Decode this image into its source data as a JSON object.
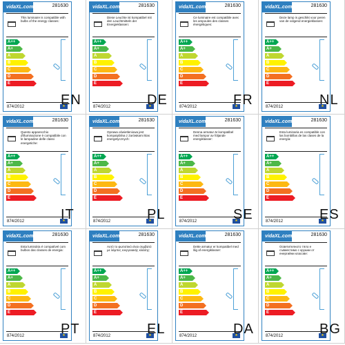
{
  "logo": "vidaXL.com",
  "regulation": "874/2012",
  "eu_flag_icon": "eu-flag-icon",
  "energy_classes": [
    "A++",
    "A+",
    "A",
    "B",
    "C",
    "D",
    "E"
  ],
  "class_colors": [
    "#00a651",
    "#4cb848",
    "#bfd730",
    "#fff200",
    "#fdb913",
    "#f37021",
    "#ed1c24"
  ],
  "labels": [
    {
      "lang": "EN",
      "code": "281630",
      "description": "This luminaire is compatible with bulbs of the energy classes:"
    },
    {
      "lang": "DE",
      "code": "281630",
      "description": "Diese Leuchte ist kompatibel mit den Leuchtmitteln der Energieklassen:"
    },
    {
      "lang": "FR",
      "code": "281630",
      "description": "Ce luminaire est compatible avec les ampoules des classes énergétiques:"
    },
    {
      "lang": "NL",
      "code": "281630",
      "description": "Deze lamp is geschikt voor peren van de volgend energieklassen:"
    },
    {
      "lang": "IT",
      "code": "281630",
      "description": "Questo apparecchio d'illuminazione è compatibile con le lampadine delle classi energetiche:"
    },
    {
      "lang": "PL",
      "code": "281630",
      "description": "Oprawa oświetleniowa jest kompatybilna z żarówkami klas energetycznych:"
    },
    {
      "lang": "SE",
      "code": "281630",
      "description": "Denna armatur är kompatibel med lampor av följande energiklasser:"
    },
    {
      "lang": "ES",
      "code": "281630",
      "description": "Esta luminaria es compatible con las bombillas de las clases de la energía:"
    },
    {
      "lang": "PT",
      "code": "281630",
      "description": "Esta luminária é compatível com bulbos das classes de energia:"
    },
    {
      "lang": "EL",
      "code": "281630",
      "description": "Αυτό το φωτιστικό είναι συμβατό με λάμπες ενεργειακής κλάσης:"
    },
    {
      "lang": "DA",
      "code": "281630",
      "description": "Dette armatur er kompatibel med lâg af energiklasser:"
    },
    {
      "lang": "BG",
      "code": "281630",
      "description": "Осветителното тяло е съвместимо с крушки от енергийни класове:"
    }
  ]
}
